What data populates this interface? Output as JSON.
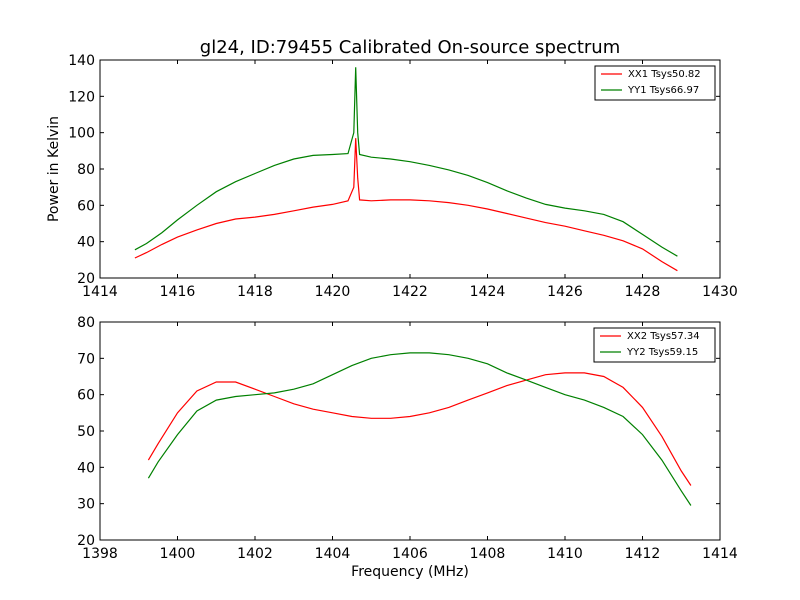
{
  "chart_data": [
    {
      "type": "line",
      "title": "gl24, ID:79455 Calibrated On-source spectrum",
      "xlabel": "",
      "ylabel": "Power in Kelvin",
      "xlim": [
        1414,
        1430
      ],
      "ylim": [
        20,
        140
      ],
      "xticks": [
        1414,
        1416,
        1418,
        1420,
        1422,
        1424,
        1426,
        1428,
        1430
      ],
      "yticks": [
        20,
        40,
        60,
        80,
        100,
        120,
        140
      ],
      "legend_position": "top-right",
      "series": [
        {
          "name": "XX1 Tsys50.82",
          "color": "#ff0000",
          "points": [
            [
              1414.9,
              31
            ],
            [
              1415.2,
              34
            ],
            [
              1415.6,
              38.5
            ],
            [
              1416.0,
              42.5
            ],
            [
              1416.5,
              46.5
            ],
            [
              1417.0,
              50
            ],
            [
              1417.5,
              52.5
            ],
            [
              1418.0,
              53.5
            ],
            [
              1418.5,
              55
            ],
            [
              1419.0,
              57
            ],
            [
              1419.5,
              59
            ],
            [
              1420.0,
              60.5
            ],
            [
              1420.4,
              62.5
            ],
            [
              1420.55,
              70
            ],
            [
              1420.6,
              97
            ],
            [
              1420.65,
              75
            ],
            [
              1420.7,
              63
            ],
            [
              1421.0,
              62.5
            ],
            [
              1421.5,
              63
            ],
            [
              1422.0,
              63
            ],
            [
              1422.5,
              62.5
            ],
            [
              1423.0,
              61.5
            ],
            [
              1423.5,
              60
            ],
            [
              1424.0,
              58
            ],
            [
              1424.5,
              55.5
            ],
            [
              1425.0,
              53
            ],
            [
              1425.5,
              50.5
            ],
            [
              1426.0,
              48.5
            ],
            [
              1426.5,
              46
            ],
            [
              1427.0,
              43.5
            ],
            [
              1427.5,
              40.5
            ],
            [
              1428.0,
              36
            ],
            [
              1428.5,
              29
            ],
            [
              1428.9,
              24
            ]
          ]
        },
        {
          "name": "YY1 Tsys66.97",
          "color": "#008000",
          "points": [
            [
              1414.9,
              35.5
            ],
            [
              1415.2,
              39
            ],
            [
              1415.6,
              45
            ],
            [
              1416.0,
              52
            ],
            [
              1416.5,
              60
            ],
            [
              1417.0,
              67.5
            ],
            [
              1417.5,
              73
            ],
            [
              1418.0,
              77.5
            ],
            [
              1418.5,
              82
            ],
            [
              1419.0,
              85.5
            ],
            [
              1419.5,
              87.5
            ],
            [
              1420.0,
              88
            ],
            [
              1420.4,
              88.5
            ],
            [
              1420.55,
              100
            ],
            [
              1420.6,
              136
            ],
            [
              1420.65,
              100
            ],
            [
              1420.7,
              88
            ],
            [
              1421.0,
              86.5
            ],
            [
              1421.5,
              85.5
            ],
            [
              1422.0,
              84
            ],
            [
              1422.5,
              82
            ],
            [
              1423.0,
              79.5
            ],
            [
              1423.5,
              76.5
            ],
            [
              1424.0,
              72.5
            ],
            [
              1424.5,
              68
            ],
            [
              1425.0,
              64
            ],
            [
              1425.5,
              60.5
            ],
            [
              1426.0,
              58.5
            ],
            [
              1426.5,
              57
            ],
            [
              1427.0,
              55
            ],
            [
              1427.5,
              51
            ],
            [
              1428.0,
              44
            ],
            [
              1428.5,
              37
            ],
            [
              1428.9,
              32
            ]
          ]
        }
      ]
    },
    {
      "type": "line",
      "title": "",
      "xlabel": "Frequency (MHz)",
      "ylabel": "",
      "xlim": [
        1398,
        1414
      ],
      "ylim": [
        20,
        80
      ],
      "xticks": [
        1398,
        1400,
        1402,
        1404,
        1406,
        1408,
        1410,
        1412,
        1414
      ],
      "yticks": [
        20,
        30,
        40,
        50,
        60,
        70,
        80
      ],
      "legend_position": "top-right",
      "series": [
        {
          "name": "XX2 Tsys57.34",
          "color": "#ff0000",
          "points": [
            [
              1399.25,
              42
            ],
            [
              1399.5,
              46.5
            ],
            [
              1400.0,
              55
            ],
            [
              1400.5,
              61
            ],
            [
              1401.0,
              63.5
            ],
            [
              1401.5,
              63.5
            ],
            [
              1402.0,
              61.5
            ],
            [
              1402.5,
              59.5
            ],
            [
              1403.0,
              57.5
            ],
            [
              1403.5,
              56
            ],
            [
              1404.0,
              55
            ],
            [
              1404.5,
              54
            ],
            [
              1405.0,
              53.5
            ],
            [
              1405.5,
              53.5
            ],
            [
              1406.0,
              54
            ],
            [
              1406.5,
              55
            ],
            [
              1407.0,
              56.5
            ],
            [
              1407.5,
              58.5
            ],
            [
              1408.0,
              60.5
            ],
            [
              1408.5,
              62.5
            ],
            [
              1409.0,
              64
            ],
            [
              1409.5,
              65.5
            ],
            [
              1410.0,
              66
            ],
            [
              1410.5,
              66
            ],
            [
              1411.0,
              65
            ],
            [
              1411.5,
              62
            ],
            [
              1412.0,
              56.5
            ],
            [
              1412.5,
              48.5
            ],
            [
              1413.0,
              39
            ],
            [
              1413.25,
              35
            ]
          ]
        },
        {
          "name": "YY2 Tsys59.15",
          "color": "#008000",
          "points": [
            [
              1399.25,
              37
            ],
            [
              1399.5,
              41.5
            ],
            [
              1400.0,
              49
            ],
            [
              1400.5,
              55.5
            ],
            [
              1401.0,
              58.5
            ],
            [
              1401.5,
              59.5
            ],
            [
              1402.0,
              60
            ],
            [
              1402.5,
              60.5
            ],
            [
              1403.0,
              61.5
            ],
            [
              1403.5,
              63
            ],
            [
              1404.0,
              65.5
            ],
            [
              1404.5,
              68
            ],
            [
              1405.0,
              70
            ],
            [
              1405.5,
              71
            ],
            [
              1406.0,
              71.5
            ],
            [
              1406.5,
              71.5
            ],
            [
              1407.0,
              71
            ],
            [
              1407.5,
              70
            ],
            [
              1408.0,
              68.5
            ],
            [
              1408.5,
              66
            ],
            [
              1409.0,
              64
            ],
            [
              1409.5,
              62
            ],
            [
              1410.0,
              60
            ],
            [
              1410.5,
              58.5
            ],
            [
              1411.0,
              56.5
            ],
            [
              1411.5,
              54
            ],
            [
              1412.0,
              49
            ],
            [
              1412.5,
              42
            ],
            [
              1413.0,
              33.5
            ],
            [
              1413.25,
              29.5
            ]
          ]
        }
      ]
    }
  ]
}
